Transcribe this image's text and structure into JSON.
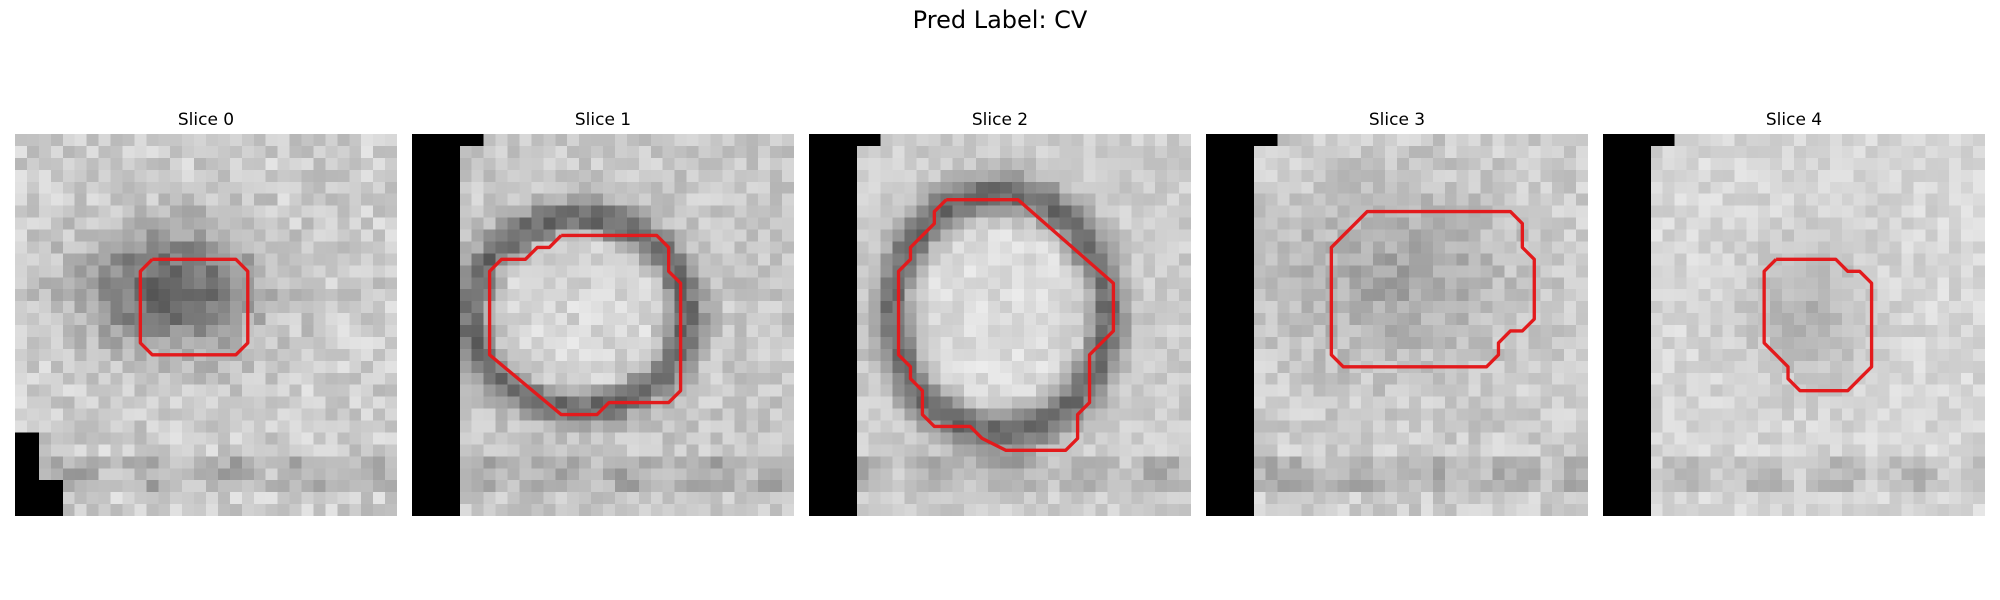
{
  "figure": {
    "suptitle": "Pred Label: CV"
  },
  "slices": [
    {
      "title": "Slice 0",
      "seed": 11,
      "base": 205,
      "noise": 24,
      "blob_dark": 110,
      "blob_ring": false,
      "border": "corner-bl",
      "contrast": "high"
    },
    {
      "title": "Slice 1",
      "seed": 23,
      "base": 200,
      "noise": 20,
      "blob_dark": 95,
      "blob_ring": true,
      "border": "left",
      "contrast": "high"
    },
    {
      "title": "Slice 2",
      "seed": 37,
      "base": 205,
      "noise": 16,
      "blob_dark": 100,
      "blob_ring": true,
      "border": "left",
      "contrast": "medium"
    },
    {
      "title": "Slice 3",
      "seed": 41,
      "base": 205,
      "noise": 20,
      "blob_dark": 40,
      "blob_ring": false,
      "border": "left",
      "contrast": "low"
    },
    {
      "title": "Slice 4",
      "seed": 53,
      "base": 215,
      "noise": 16,
      "blob_dark": 35,
      "blob_ring": false,
      "border": "left",
      "contrast": "low"
    }
  ],
  "contour_color": "#e31a1c"
}
